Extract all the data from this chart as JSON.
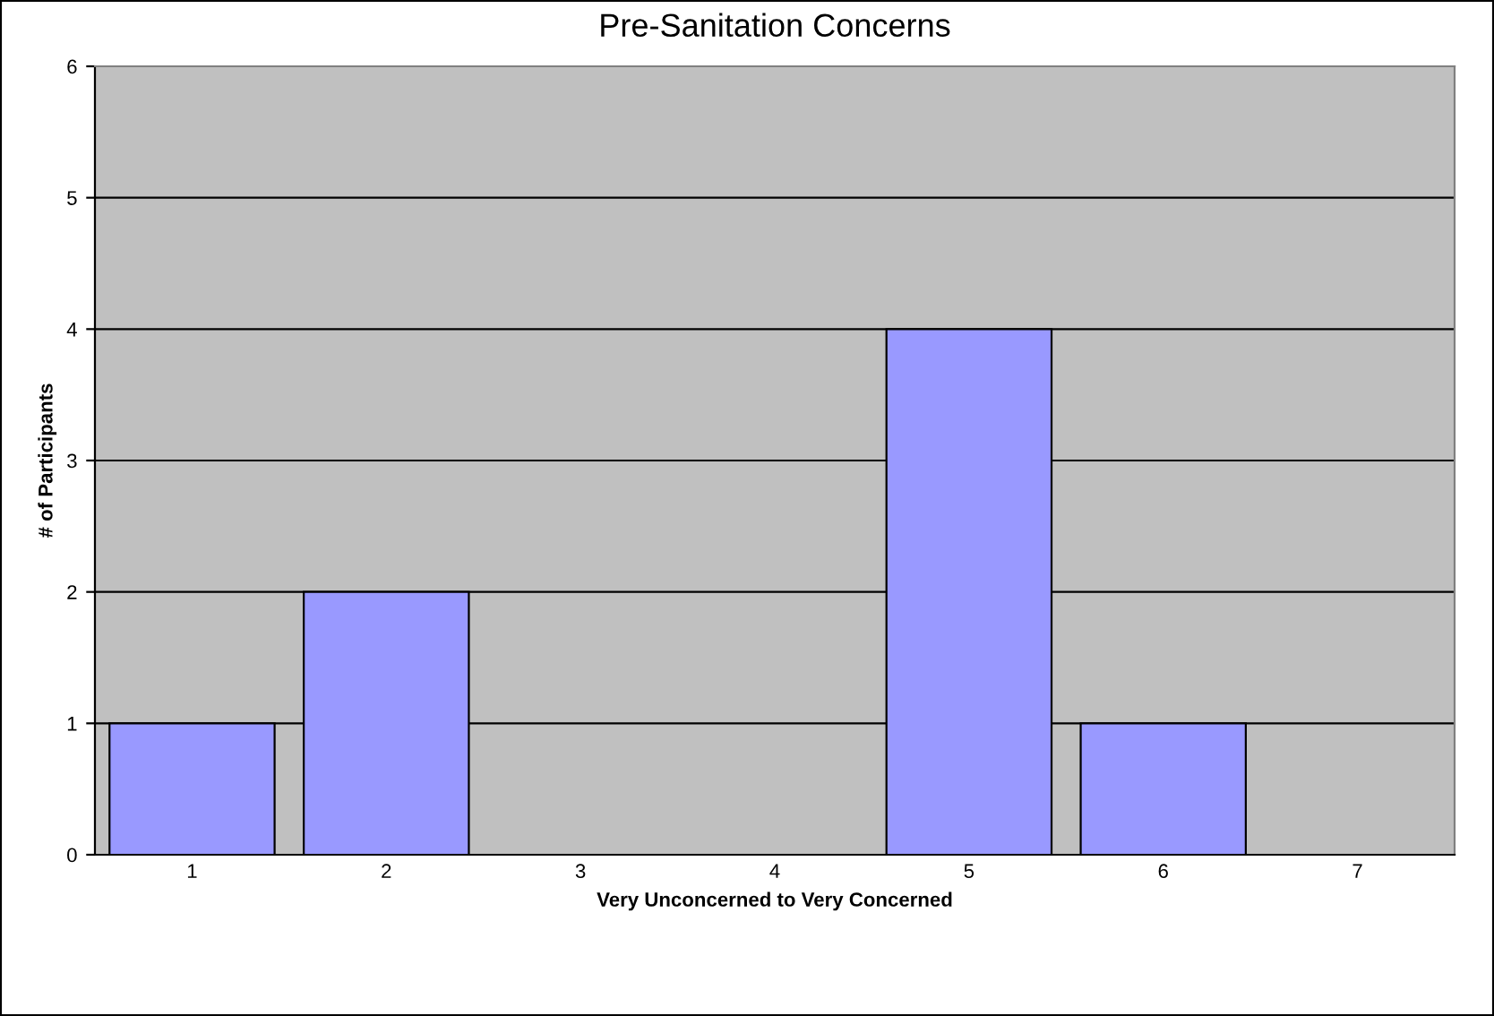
{
  "chart_data": {
    "type": "bar",
    "title": "Pre-Sanitation Concerns",
    "xlabel": "Very Unconcerned to Very Concerned",
    "ylabel": "# of Participants",
    "categories": [
      "1",
      "2",
      "3",
      "4",
      "5",
      "6",
      "7"
    ],
    "values": [
      1,
      2,
      0,
      0,
      4,
      1,
      0
    ],
    "color": "#9999ff",
    "ylim": [
      0,
      6
    ],
    "yticks": [
      0,
      1,
      2,
      3,
      4,
      5,
      6
    ],
    "grid": "y"
  }
}
